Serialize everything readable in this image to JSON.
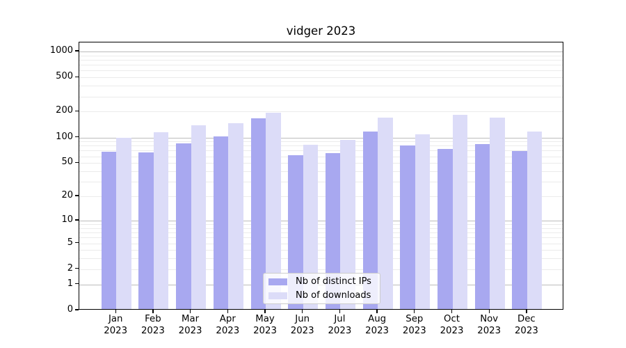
{
  "chart_data": {
    "type": "bar",
    "title": "vidger 2023",
    "y_scale": "log-like: position proportional to log10(value+1)",
    "categories": [
      "Jan 2023",
      "Feb 2023",
      "Mar 2023",
      "Apr 2023",
      "May 2023",
      "Jun 2023",
      "Jul 2023",
      "Aug 2023",
      "Sep 2023",
      "Oct 2023",
      "Nov 2023",
      "Dec 2023"
    ],
    "x_tick_months": [
      "Jan",
      "Feb",
      "Mar",
      "Apr",
      "May",
      "Jun",
      "Jul",
      "Aug",
      "Sep",
      "Oct",
      "Nov",
      "Dec"
    ],
    "x_tick_year": "2023",
    "series": [
      {
        "name": "Nb of distinct IPs",
        "color": "#a8a8f0",
        "values": [
          65,
          64,
          82,
          100,
          161,
          60,
          63,
          114,
          77,
          70,
          81,
          67
        ]
      },
      {
        "name": "Nb of downloads",
        "color": "#dcdcf8",
        "values": [
          95,
          111,
          134,
          142,
          187,
          79,
          90,
          163,
          104,
          178,
          163,
          112
        ]
      }
    ],
    "y_ticks": [
      0,
      1,
      2,
      5,
      10,
      20,
      50,
      100,
      200,
      500,
      1000
    ],
    "ylim": [
      0,
      1270
    ],
    "grid": true,
    "legend_position": "lower center",
    "colors": {
      "major_grid": "#bbbbbb",
      "minor_grid": "#ebebeb",
      "spine": "#000000",
      "legend_border": "#cccccc",
      "legend_background": "rgba(255,255,255,0.8)"
    }
  }
}
